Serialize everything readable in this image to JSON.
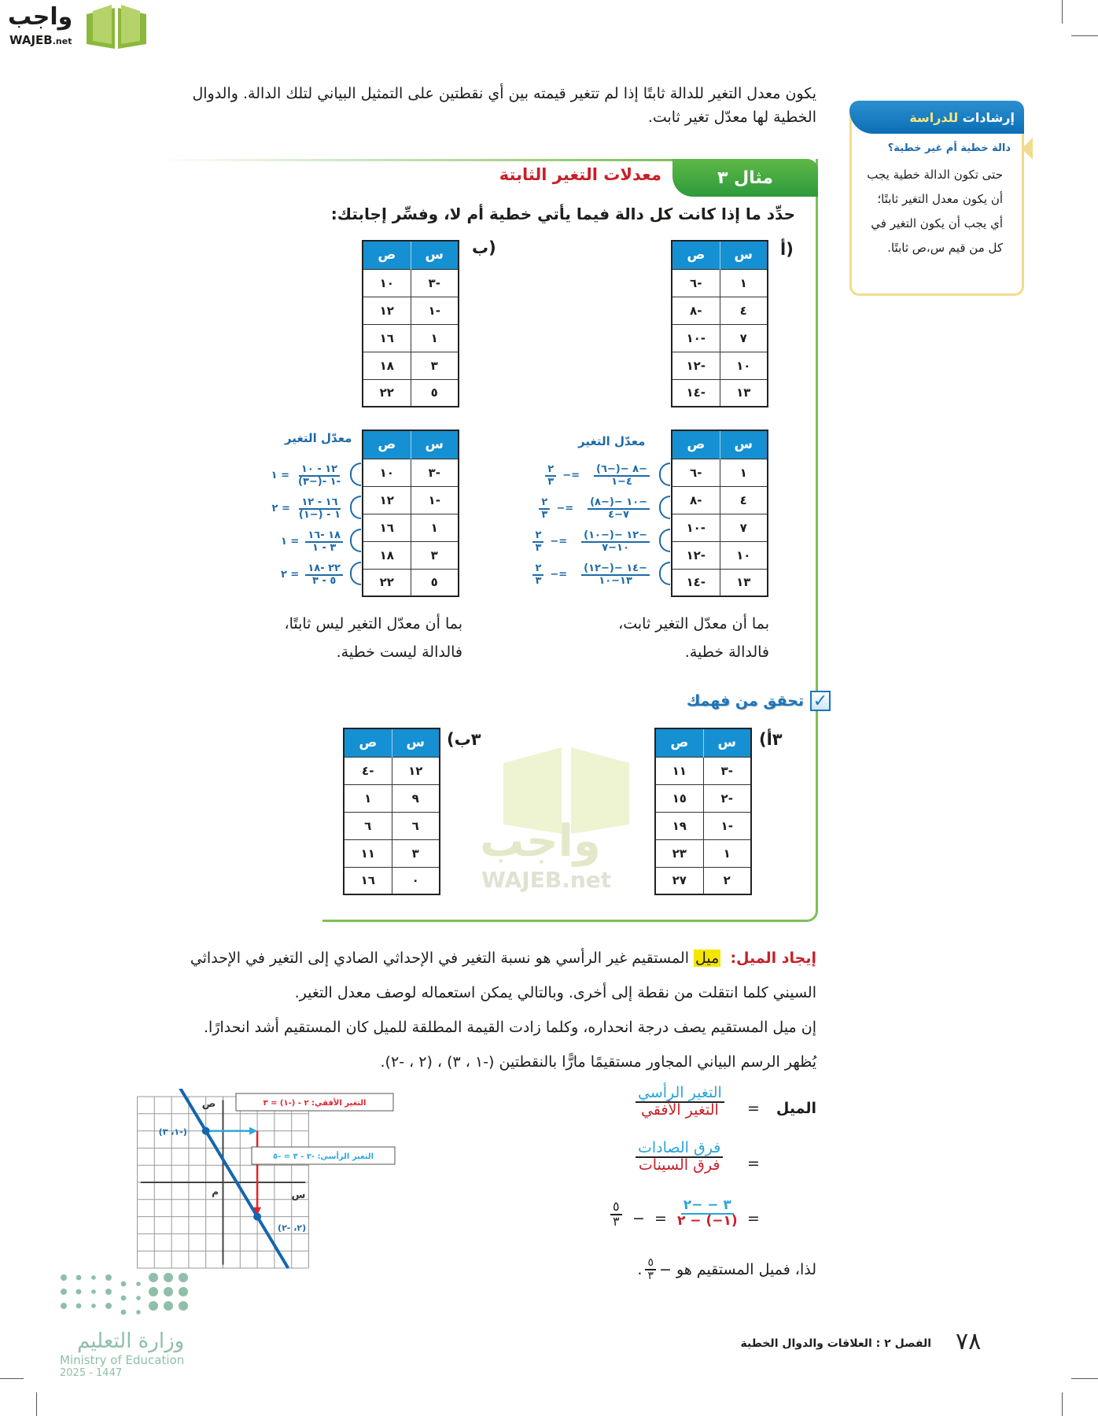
{
  "logo": {
    "arabic": "واجب",
    "english": "WAJEB",
    "suffix": ".net"
  },
  "intro": "يكون معدل التغير للدالة ثابتًا إذا لم تتغير قيمته بين أي نقطتين على التمثيل البياني لتلك الدالة. والدوال الخطية لها معدّل تغير ثابت.",
  "sidebar": {
    "title_a": "إرشادات",
    "title_b": "للدراسة",
    "subtitle": "دالة خطية أم غير خطية؟",
    "body": "حتى تكون الدالة خطية يجب أن يكون معدل التغير ثابتًا؛ أي يجب أن يكون التغير في كل من قيم س،ص ثابتًا."
  },
  "example": {
    "tab": "مثال ٣",
    "title": "معدلات التغير الثابتة",
    "instruction": "حدِّد ما إذا كانت كل دالة فيما يأتي خطية أم لا، وفسِّر إجابتك:",
    "col_x": "س",
    "col_y": "ص",
    "part_a": {
      "label": "أ)",
      "rows": [
        [
          "١",
          "-٦"
        ],
        [
          "٤",
          "-٨"
        ],
        [
          "٧",
          "-١٠"
        ],
        [
          "١٠",
          "-١٢"
        ],
        [
          "١٣",
          "-١٤"
        ]
      ],
      "rate_heading": "معدّل التغير",
      "rates": [
        {
          "num": "(٦−)− ٨−",
          "den": "١−٤",
          "result": "٢",
          "result_den": "٣",
          "sign": "−="
        },
        {
          "num": "(٨−)− ١٠−",
          "den": "٤−٧",
          "result": "٢",
          "result_den": "٣",
          "sign": "−="
        },
        {
          "num": "(١٠−)− ١٢−",
          "den": "٧−١٠",
          "result": "٢",
          "result_den": "٣",
          "sign": "−="
        },
        {
          "num": "(١٢−)− ١٤−",
          "den": "١٠−١٣",
          "result": "٢",
          "result_den": "٣",
          "sign": "−="
        }
      ],
      "conclusion_1": "بما أن معدّل التغير ثابت،",
      "conclusion_2": "فالدالة خطية."
    },
    "part_b": {
      "label": "ب)",
      "rows": [
        [
          "-٣",
          "١٠"
        ],
        [
          "-١",
          "١٢"
        ],
        [
          "١",
          "١٦"
        ],
        [
          "٣",
          "١٨"
        ],
        [
          "٥",
          "٢٢"
        ]
      ],
      "rate_heading": "معدّل التغير",
      "rates": [
        {
          "num": "١٠ - ١٢",
          "den": "(٣−)- ١-",
          "result": "١ ="
        },
        {
          "num": "١٢ - ١٦",
          "den": "(١−) - ١",
          "result": "٢ ="
        },
        {
          "num": "١٦- ١٨",
          "den": "١ - ٣",
          "result": "١ ="
        },
        {
          "num": "١٨- ٢٢",
          "den": "٣ - ٥",
          "result": "٢ ="
        }
      ],
      "conclusion_1": "بما أن معدّل التغير ليس ثابتًا،",
      "conclusion_2": "فالدالة ليست خطية."
    }
  },
  "check": {
    "label": "تحقق من فهمك",
    "part_3a": {
      "label": "٣أ)",
      "rows": [
        [
          "-٣",
          "١١"
        ],
        [
          "-٢",
          "١٥"
        ],
        [
          "-١",
          "١٩"
        ],
        [
          "١",
          "٢٣"
        ],
        [
          "٢",
          "٢٧"
        ]
      ]
    },
    "part_3b": {
      "label": "٣ب)",
      "rows": [
        [
          "١٢",
          "-٤"
        ],
        [
          "٩",
          "١"
        ],
        [
          "٦",
          "٦"
        ],
        [
          "٣",
          "١١"
        ],
        [
          "٠",
          "١٦"
        ]
      ]
    }
  },
  "slope": {
    "heading": "إيجاد الميل:",
    "term": "ميل",
    "p1": "المستقيم غير الرأسي هو نسبة التغير في الإحداثي الصادي إلى التغير في الإحداثي السيني كلما انتقلت من نقطة إلى أخرى. وبالتالي يمكن استعماله لوصف معدل التغير.",
    "p2": "إن ميل المستقيم يصف درجة انحداره، وكلما زادت القيمة المطلقة للميل كان المستقيم أشد انحدارًا.",
    "p3": "يُظهر الرسم البياني المجاور مستقيمًا مارًّا بالنقطتين (-١ ، ٣) ، (٢ ، -٢).",
    "formula": {
      "label": "الميل",
      "eq": "=",
      "rise": "التغير الرأسي",
      "run": "التغير الأفقي",
      "dy": "فرق الصادات",
      "dx": "فرق السينات",
      "num": "٢− − ٣",
      "den": "٢ − (−١)",
      "result_num": "٥",
      "result_den": "٣",
      "neg": "−"
    },
    "conclusion": "لذا، فميل المستقيم هو −",
    "conclusion_num": "٥",
    "conclusion_den": "٣"
  },
  "graph": {
    "axis_x": "س",
    "axis_y": "ص",
    "origin": "م",
    "points": [
      {
        "x": -1,
        "y": 3,
        "label": "(-١، ٣)"
      },
      {
        "x": 2,
        "y": -2,
        "label": "(٢، -٢)"
      }
    ],
    "horizontal_change": "التغير الأفقي: ٢ - (-١) = ٣",
    "vertical_change": "التغير الرأسي: -٢ - ٣ = -٥",
    "colors": {
      "line": "#1466ae",
      "horizontal": "#2ea6df",
      "vertical": "#e0252e"
    }
  },
  "ministry": {
    "arabic": "وزارة التعليم",
    "english": "Ministry of Education",
    "year": "2025 - 1447"
  },
  "footer": {
    "page": "٧٨",
    "chapter": "الفصل ٢ :  العلاقات والدوال الخطية"
  },
  "colors": {
    "green": "#2c9a3b",
    "blue_header": "#1590d2",
    "red_title": "#c8202a",
    "highlight": "#f4e600"
  }
}
